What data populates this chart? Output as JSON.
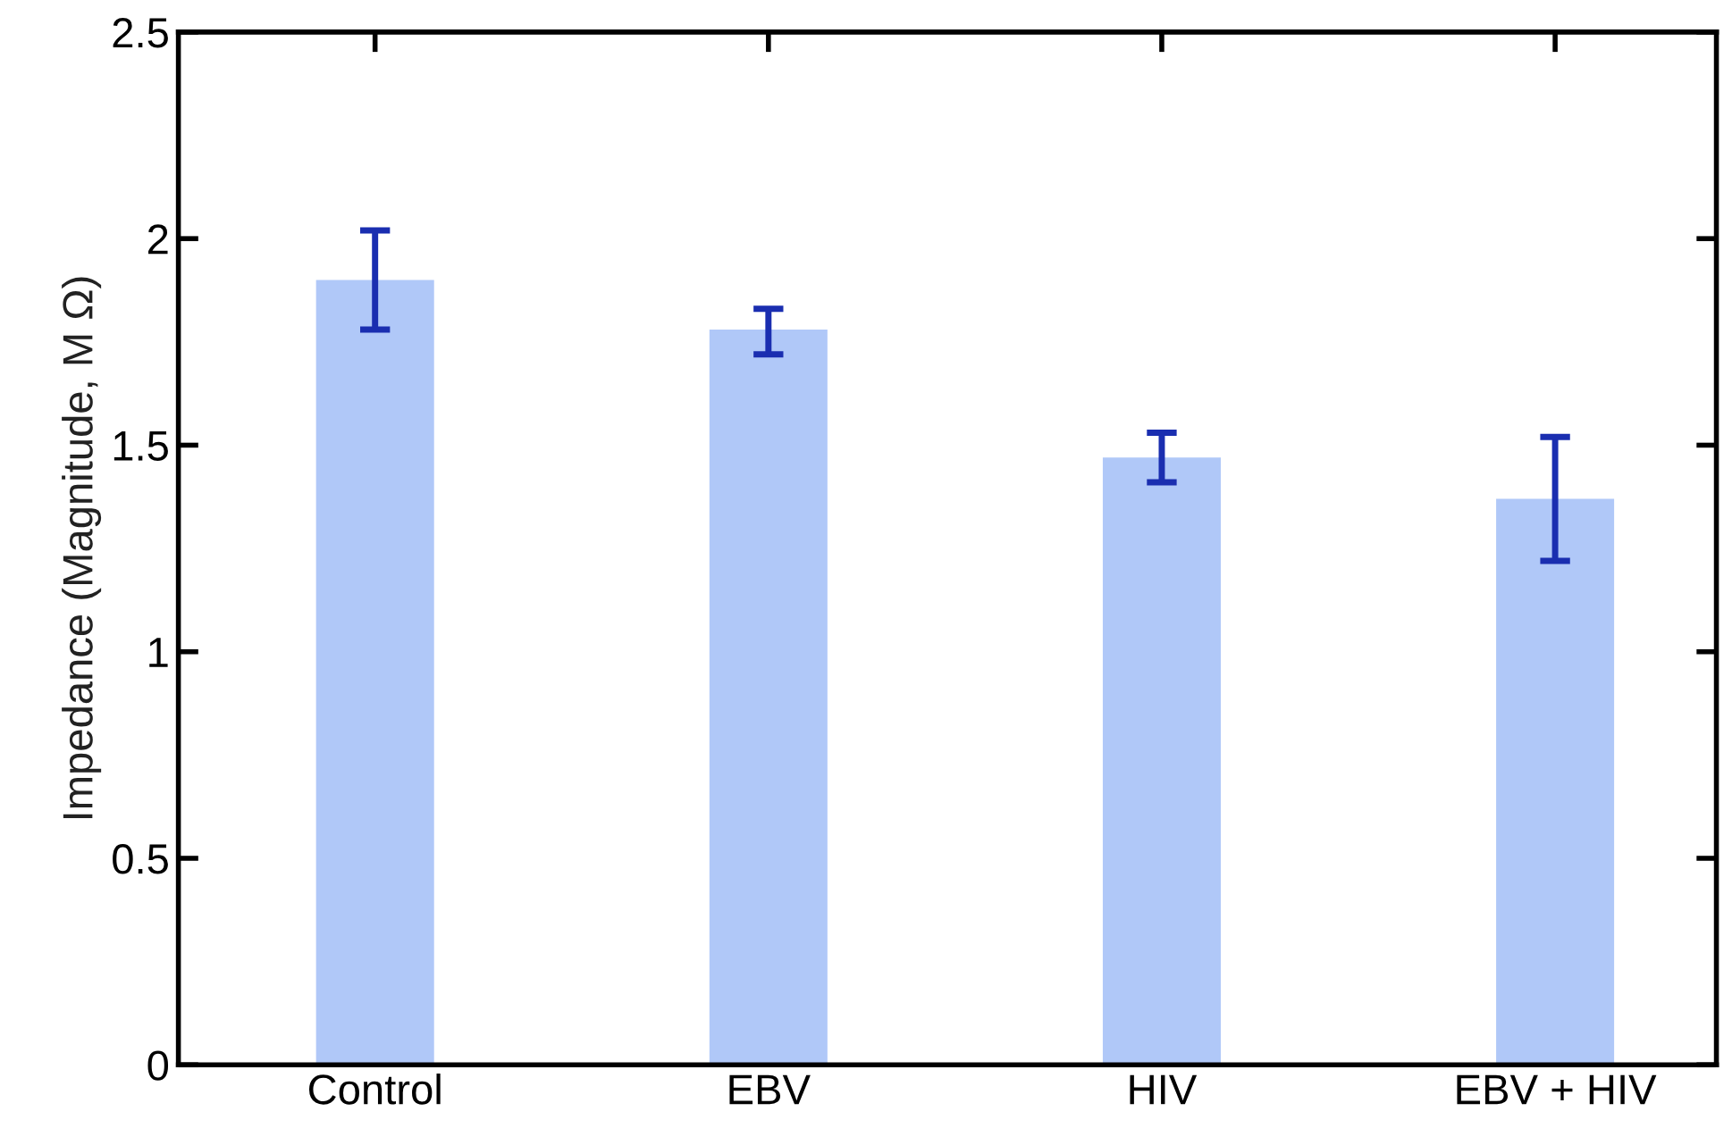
{
  "chart_data": {
    "type": "bar",
    "ylabel": "Impedance (Magnitude, M Ω)",
    "categories": [
      "Control",
      "EBV",
      "HIV",
      "EBV + HIV"
    ],
    "values": [
      1.9,
      1.78,
      1.47,
      1.37
    ],
    "errors": [
      [
        1.78,
        2.02
      ],
      [
        1.72,
        1.83
      ],
      [
        1.41,
        1.53
      ],
      [
        1.22,
        1.52
      ]
    ],
    "color": "#b0c8f8",
    "ylim": [
      0,
      2.5
    ],
    "yticks": [
      0,
      0.5,
      1,
      1.5,
      2,
      2.5
    ],
    "grid": false,
    "legend": false
  }
}
